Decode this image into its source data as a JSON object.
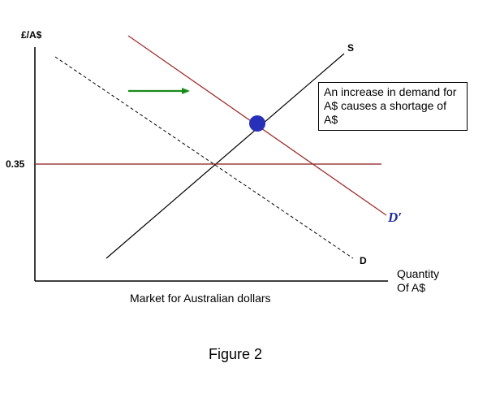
{
  "diagram": {
    "y_axis_label": "£/A$",
    "price_tick_label": "0.35",
    "supply_label": "S",
    "demand_label": "D",
    "new_demand_label": "D′",
    "x_axis_label_line1": "Quantity",
    "x_axis_label_line2": "Of A$",
    "market_caption": "Market for Australian dollars",
    "figure_caption": "Figure 2",
    "note_text": "An increase in demand for A$ causes a shortage of A$",
    "colors": {
      "axes": "#000000",
      "supply": "#000000",
      "original_demand": "#000000",
      "new_demand": "#a03030",
      "price_line": "#8b1a1a",
      "shift_arrow": "#1a8a1a",
      "equilibrium_dot": "#2630b8",
      "new_demand_label": "#1f2fa3"
    }
  }
}
